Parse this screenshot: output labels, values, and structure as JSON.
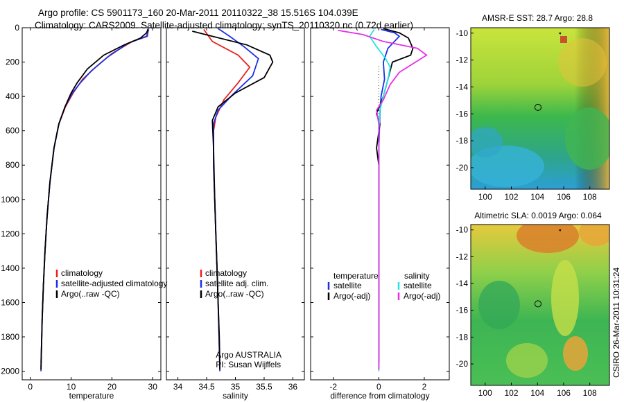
{
  "header": {
    "line1": "Argo profile: CS 5901173_160 20-Mar-2011 20110322_38 15.516S 104.039E",
    "line2": "Climatology: CARS2009. Satellite-adjusted climatology: synTS_20110320.nc (0.72d earlier)"
  },
  "colors": {
    "climatology": "#e8211d",
    "satellite": "#1a2fe6",
    "argo": "#000000",
    "sal_sat": "#21e6e6",
    "sal_argo": "#e62ee6"
  },
  "chart_data": [
    {
      "type": "line",
      "id": "temperature",
      "xlabel": "temperature",
      "xlim": [
        -2,
        32
      ],
      "ylim": [
        0,
        2050
      ],
      "xticks": [
        0,
        10,
        20,
        30
      ],
      "yticks": [
        0,
        200,
        400,
        600,
        800,
        1000,
        1200,
        1400,
        1600,
        1800,
        2000
      ],
      "series": [
        {
          "name": "climatology",
          "color": "#e8211d",
          "points": [
            [
              28.9,
              10
            ],
            [
              28.7,
              50
            ],
            [
              25,
              80
            ],
            [
              20,
              150
            ],
            [
              16,
              230
            ],
            [
              12.8,
              300
            ],
            [
              10.5,
              380
            ],
            [
              8.6,
              460
            ],
            [
              7,
              560
            ],
            [
              5.8,
              700
            ],
            [
              4.8,
              900
            ],
            [
              4.1,
              1100
            ],
            [
              3.6,
              1300
            ],
            [
              3.2,
              1500
            ],
            [
              2.9,
              1700
            ],
            [
              2.7,
              1900
            ],
            [
              2.6,
              1950
            ]
          ]
        },
        {
          "name": "satellite-adjusted climatology",
          "color": "#1a2fe6",
          "points": [
            [
              29,
              10
            ],
            [
              28.5,
              50
            ],
            [
              24,
              90
            ],
            [
              19,
              170
            ],
            [
              15,
              250
            ],
            [
              12.3,
              320
            ],
            [
              10.3,
              380
            ],
            [
              8.5,
              460
            ],
            [
              7,
              560
            ],
            [
              5.8,
              700
            ],
            [
              4.8,
              900
            ],
            [
              4.1,
              1100
            ],
            [
              3.6,
              1300
            ],
            [
              3.2,
              1500
            ],
            [
              2.9,
              1700
            ],
            [
              2.7,
              1900
            ],
            [
              2.6,
              2000
            ]
          ]
        },
        {
          "name": "Argo(..raw -QC)",
          "color": "#000000",
          "points": [
            [
              28.9,
              5
            ],
            [
              28.5,
              30
            ],
            [
              27,
              60
            ],
            [
              23,
              100
            ],
            [
              18,
              160
            ],
            [
              14,
              240
            ],
            [
              11.5,
              320
            ],
            [
              10,
              380
            ],
            [
              8.5,
              460
            ],
            [
              7,
              560
            ],
            [
              5.8,
              700
            ],
            [
              4.8,
              900
            ],
            [
              4.1,
              1100
            ],
            [
              3.6,
              1300
            ],
            [
              3.2,
              1500
            ],
            [
              2.9,
              1700
            ],
            [
              2.7,
              1900
            ],
            [
              2.6,
              1990
            ]
          ]
        }
      ],
      "legend": [
        "climatology",
        "satellite-adjusted climatology",
        "Argo(..raw -QC)"
      ]
    },
    {
      "type": "line",
      "id": "salinity",
      "xlabel": "salinity",
      "xlim": [
        33.8,
        36.2
      ],
      "ylim": [
        0,
        2050
      ],
      "xticks": [
        34,
        34.5,
        35,
        35.5,
        36
      ],
      "yticks": [
        0,
        200,
        400,
        600,
        800,
        1000,
        1200,
        1400,
        1600,
        1800,
        2000
      ],
      "series": [
        {
          "name": "climatology",
          "color": "#e8211d",
          "points": [
            [
              34.45,
              10
            ],
            [
              34.6,
              80
            ],
            [
              35.05,
              160
            ],
            [
              35.25,
              230
            ],
            [
              35.05,
              320
            ],
            [
              34.8,
              420
            ],
            [
              34.66,
              520
            ],
            [
              34.62,
              600
            ],
            [
              34.62,
              800
            ],
            [
              34.64,
              1000
            ],
            [
              34.66,
              1200
            ],
            [
              34.68,
              1400
            ],
            [
              34.7,
              1600
            ],
            [
              34.72,
              1850
            ]
          ]
        },
        {
          "name": "satellite adj. clim.",
          "color": "#1a2fe6",
          "points": [
            [
              34.7,
              5
            ],
            [
              34.9,
              50
            ],
            [
              35.15,
              110
            ],
            [
              35.4,
              180
            ],
            [
              35.3,
              280
            ],
            [
              34.95,
              390
            ],
            [
              34.7,
              480
            ],
            [
              34.62,
              560
            ],
            [
              34.62,
              800
            ],
            [
              34.64,
              1000
            ],
            [
              34.66,
              1200
            ],
            [
              34.68,
              1400
            ],
            [
              34.7,
              1600
            ],
            [
              34.73,
              2000
            ]
          ]
        },
        {
          "name": "Argo(..raw -QC)",
          "color": "#000000",
          "points": [
            [
              34.25,
              20
            ],
            [
              34.6,
              50
            ],
            [
              35.2,
              100
            ],
            [
              35.6,
              160
            ],
            [
              35.65,
              200
            ],
            [
              35.5,
              290
            ],
            [
              35.0,
              380
            ],
            [
              34.7,
              460
            ],
            [
              34.6,
              540
            ],
            [
              34.62,
              700
            ],
            [
              34.64,
              1000
            ],
            [
              34.66,
              1200
            ],
            [
              34.68,
              1400
            ],
            [
              34.7,
              1600
            ],
            [
              34.72,
              1800
            ],
            [
              34.73,
              1990
            ]
          ]
        }
      ],
      "legend": [
        "climatology",
        "satellite adj. clim.",
        "Argo(..raw -QC)"
      ],
      "annotations": [
        "Argo AUSTRALIA",
        "PI: Susan Wijffels"
      ]
    },
    {
      "type": "line",
      "id": "difference",
      "xlabel": "difference from climatology",
      "xlim": [
        -3,
        3.1
      ],
      "ylim": [
        0,
        2050
      ],
      "xticks": [
        -2,
        0,
        2
      ],
      "yticks": [
        0,
        200,
        400,
        600,
        800,
        1000,
        1200,
        1400,
        1600,
        1800,
        2000
      ],
      "series": [
        {
          "name": "temperature satellite",
          "color": "#1a2fe6",
          "points": [
            [
              0.1,
              10
            ],
            [
              0.7,
              30
            ],
            [
              0.9,
              50
            ],
            [
              0.4,
              120
            ],
            [
              0.2,
              200
            ],
            [
              0.25,
              300
            ],
            [
              0.1,
              400
            ],
            [
              0.05,
              500
            ],
            [
              0,
              700
            ],
            [
              0,
              1000
            ],
            [
              0,
              1500
            ],
            [
              0,
              1950
            ]
          ]
        },
        {
          "name": "temperature Argo(-adj)",
          "color": "#000000",
          "points": [
            [
              0.2,
              5
            ],
            [
              0.9,
              30
            ],
            [
              1.3,
              60
            ],
            [
              1.5,
              120
            ],
            [
              1.4,
              160
            ],
            [
              0.6,
              200
            ],
            [
              0.4,
              300
            ],
            [
              0.2,
              400
            ],
            [
              -0.1,
              500
            ],
            [
              0.05,
              560
            ],
            [
              -0.1,
              700
            ],
            [
              0,
              800
            ],
            [
              0,
              1000
            ],
            [
              0,
              1500
            ],
            [
              0,
              1950
            ]
          ]
        },
        {
          "name": "salinity satellite",
          "color": "#21e6e6",
          "points": [
            [
              -0.2,
              10
            ],
            [
              -0.4,
              50
            ],
            [
              -0.1,
              110
            ],
            [
              0.3,
              180
            ],
            [
              0.5,
              230
            ],
            [
              0.4,
              300
            ],
            [
              0.2,
              400
            ],
            [
              0.05,
              480
            ],
            [
              0,
              600
            ],
            [
              0,
              1000
            ],
            [
              0,
              1500
            ],
            [
              0,
              2000
            ]
          ]
        },
        {
          "name": "salinity Argo(-adj)",
          "color": "#e62ee6",
          "points": [
            [
              -1.8,
              15
            ],
            [
              -0.7,
              40
            ],
            [
              0.2,
              80
            ],
            [
              1.7,
              120
            ],
            [
              2.1,
              160
            ],
            [
              1.5,
              210
            ],
            [
              0.9,
              260
            ],
            [
              0.5,
              330
            ],
            [
              0.2,
              420
            ],
            [
              -0.1,
              480
            ],
            [
              0,
              560
            ],
            [
              0,
              700
            ],
            [
              0,
              1000
            ],
            [
              0,
              1500
            ],
            [
              0,
              1990
            ]
          ]
        }
      ],
      "legend_temperature": {
        "heading": "temperature",
        "items": [
          "satellite",
          "Argo(-adj)"
        ]
      },
      "legend_salinity": {
        "heading": "salinity",
        "items": [
          "satellite",
          "Argo(-adj)"
        ]
      }
    },
    {
      "type": "heatmap",
      "id": "sst_map",
      "title": "AMSR-E SST: 28.7 Argo: 28.8",
      "xlim": [
        98.9,
        109.5
      ],
      "ylim": [
        -21.6,
        -9.6
      ],
      "xticks": [
        100,
        102,
        104,
        106,
        108
      ],
      "yticks": [
        -10,
        -12,
        -14,
        -16,
        -18,
        -20
      ],
      "argo_position": [
        104.039,
        -15.516
      ]
    },
    {
      "type": "heatmap",
      "id": "sla_map",
      "title": "Altimetric SLA: 0.0019 Argo: 0.064",
      "xlim": [
        98.9,
        109.5
      ],
      "ylim": [
        -21.6,
        -9.6
      ],
      "xticks": [
        100,
        102,
        104,
        106,
        108
      ],
      "yticks": [
        -10,
        -12,
        -14,
        -16,
        -18,
        -20
      ],
      "argo_position": [
        104.039,
        -15.516
      ]
    }
  ],
  "credit": "CSIRO 26-Mar-2011 10:31:24"
}
